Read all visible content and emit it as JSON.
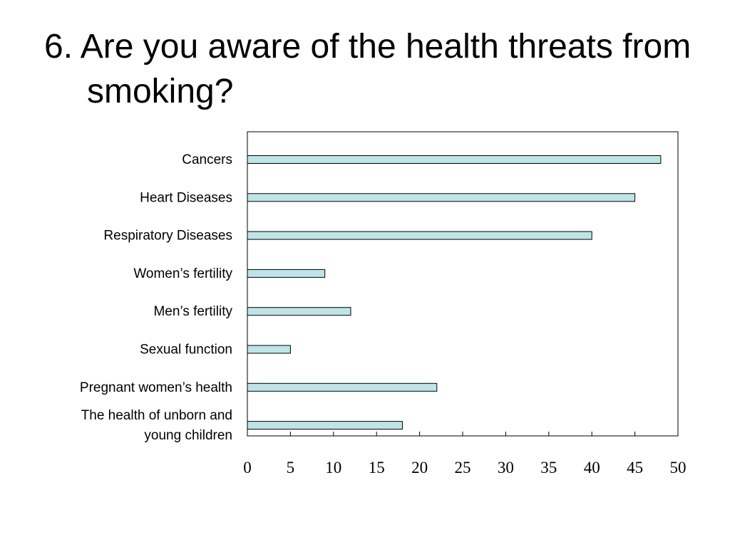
{
  "slide": {
    "title": "6. Are you aware of the health threats from smoking?"
  },
  "colors": {
    "bar_fill": "#bfe4e6",
    "bar_stroke": "#000000",
    "frame": "#000000",
    "background": "#ffffff"
  },
  "chart_data": {
    "type": "bar",
    "orientation": "horizontal",
    "categories": [
      "Cancers",
      "Heart Diseases",
      "Respiratory Diseases",
      "Women’s fertility",
      "Men’s fertility",
      "Sexual function",
      "Pregnant women’s health",
      "The health of unborn and young children"
    ],
    "category_lines": [
      [
        "Cancers"
      ],
      [
        "Heart Diseases"
      ],
      [
        "Respiratory Diseases"
      ],
      [
        "Women’s fertility"
      ],
      [
        "Men’s fertility"
      ],
      [
        "Sexual function"
      ],
      [
        "Pregnant women’s health"
      ],
      [
        "The health of unborn and",
        "young children"
      ]
    ],
    "values": [
      48,
      45,
      40,
      9,
      12,
      5,
      22,
      18
    ],
    "xlim": [
      0,
      50
    ],
    "xticks": [
      0,
      5,
      10,
      15,
      20,
      25,
      30,
      35,
      40,
      45,
      50
    ],
    "title": "",
    "xlabel": "",
    "ylabel": "",
    "grid": false,
    "legend": "none"
  }
}
